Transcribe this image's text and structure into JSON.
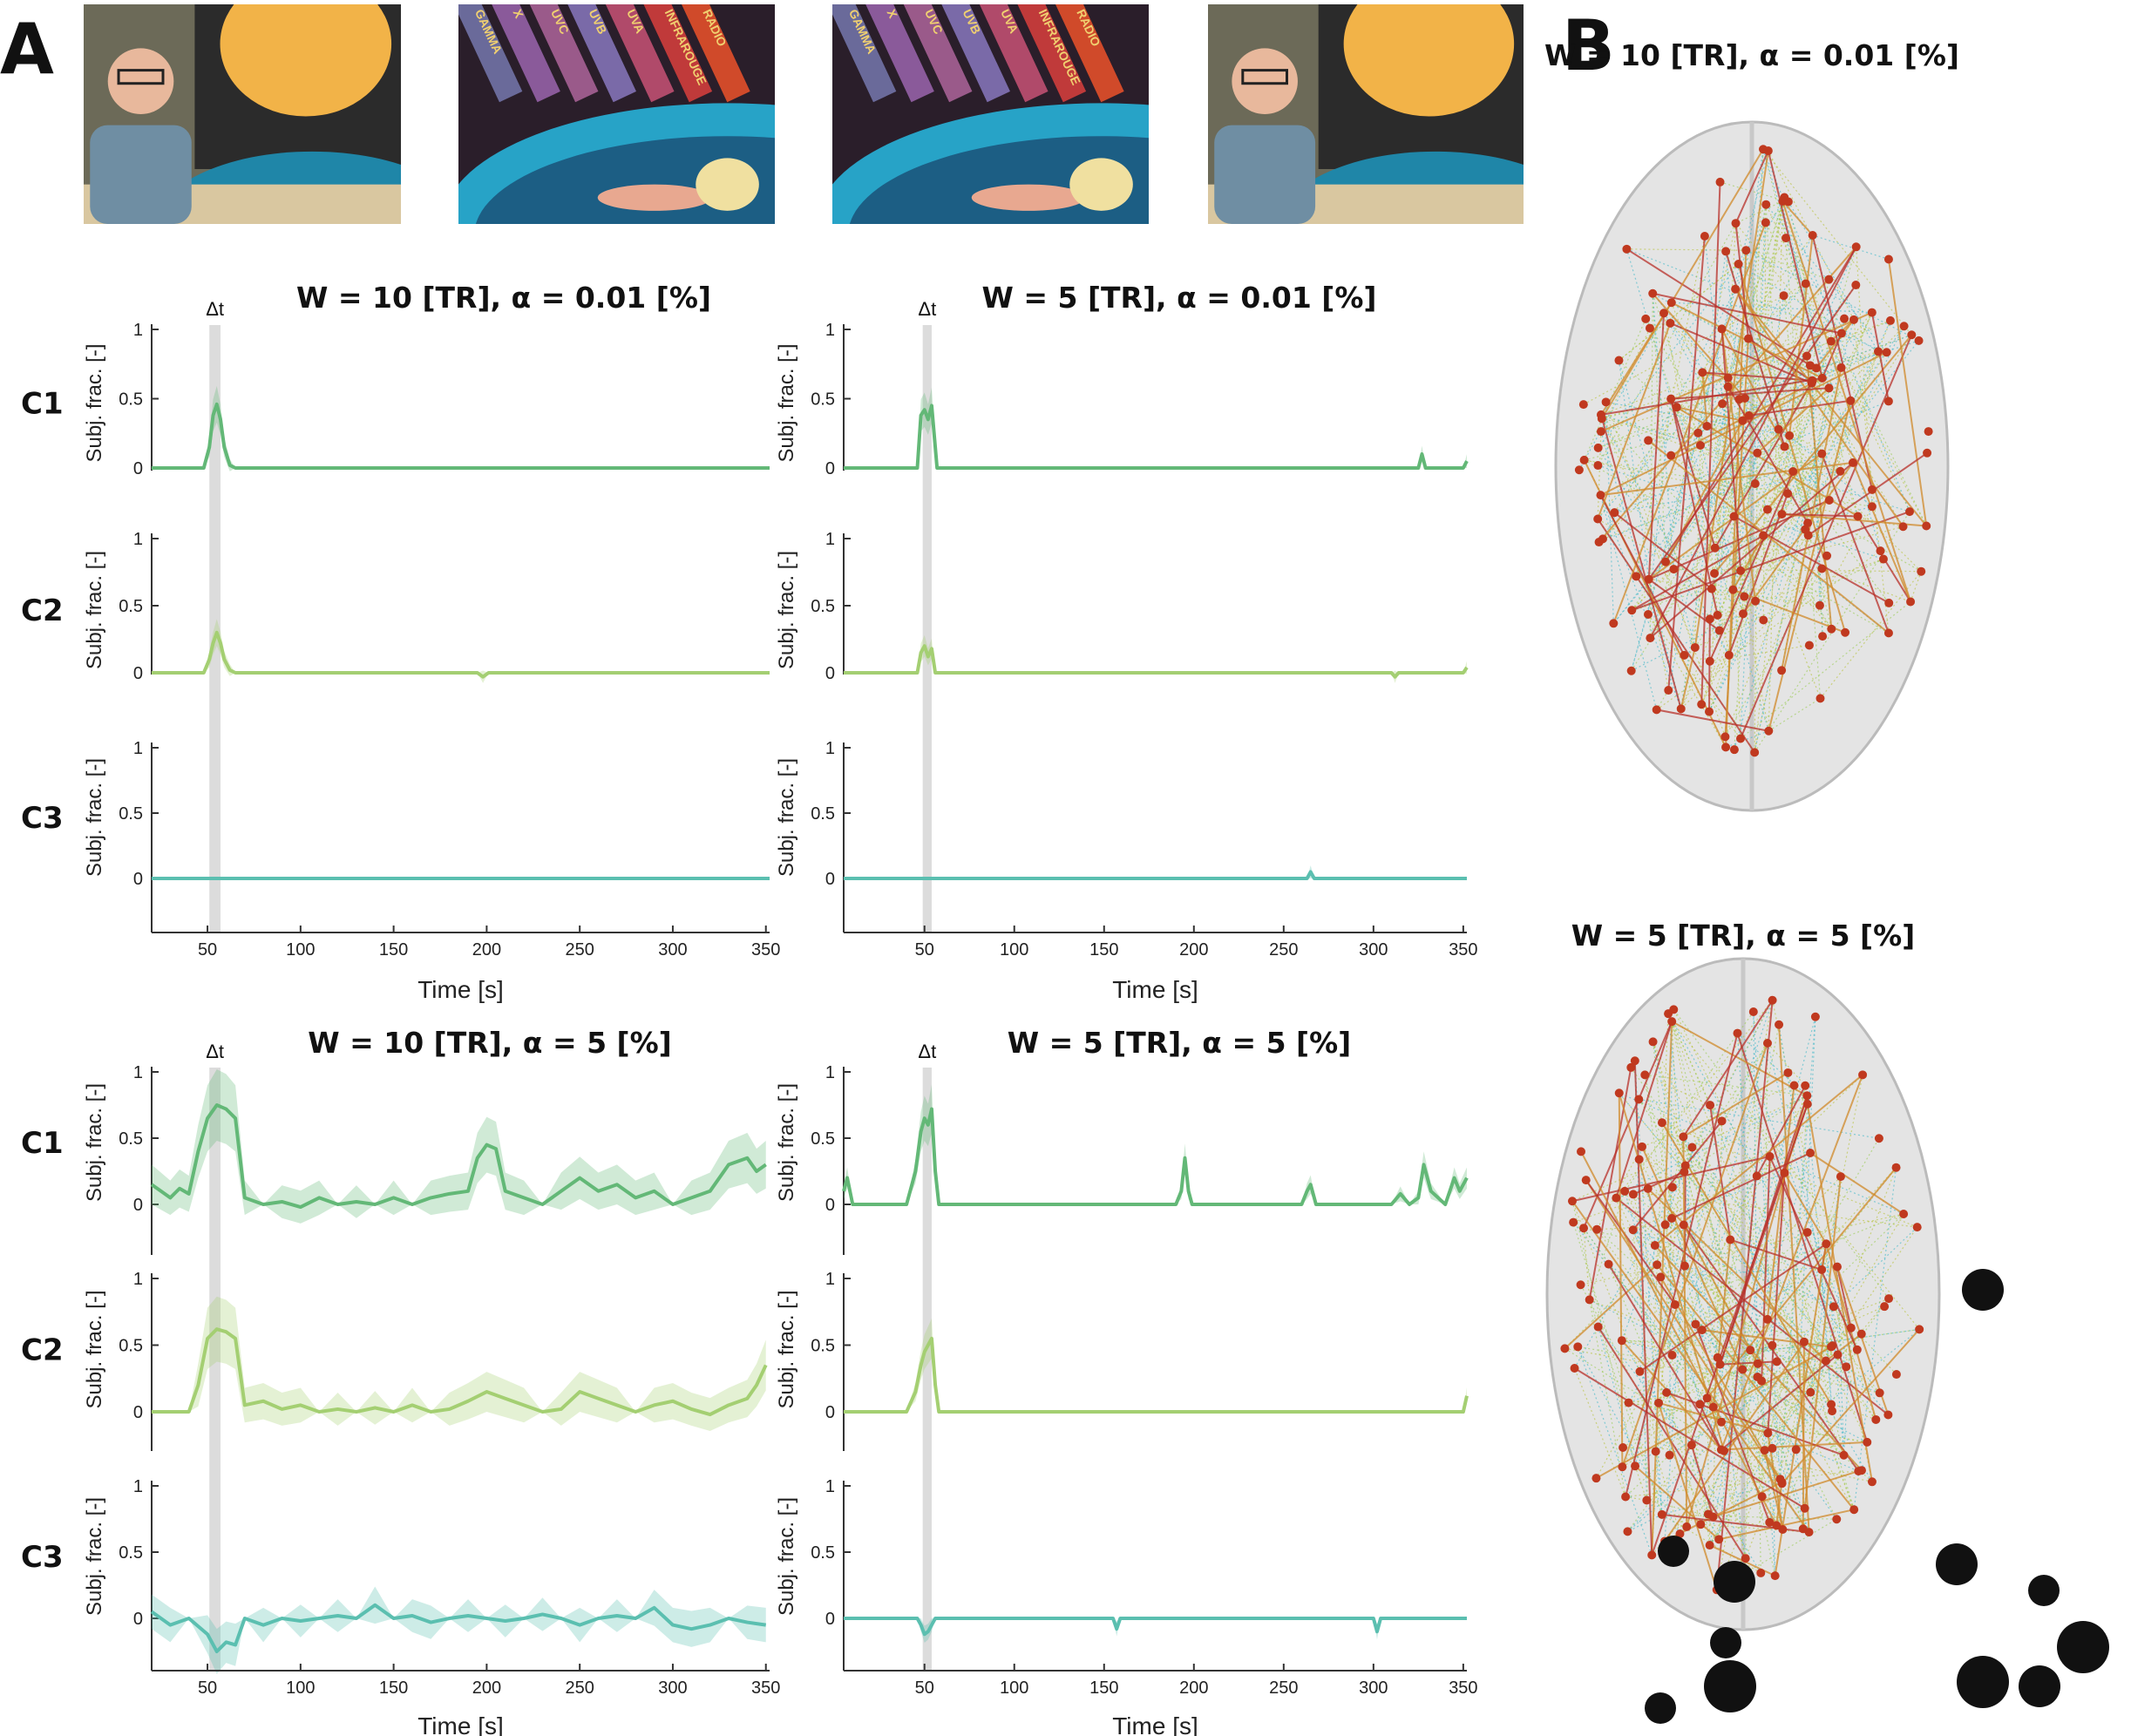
{
  "panel_labels": {
    "a": "A",
    "b": "B"
  },
  "thumbnails": [
    {
      "label_texts": [],
      "scene": "presenter"
    },
    {
      "label_texts": [
        "GAMMA",
        "X",
        "UVC",
        "UVB",
        "UVA",
        "INFRAROUGE",
        "RADIO"
      ],
      "scene": "spectrum"
    },
    {
      "label_texts": [
        "GAMMA",
        "X",
        "UVC",
        "UVB",
        "UVA",
        "INFRAROUGE",
        "RADIO"
      ],
      "scene": "spectrum"
    },
    {
      "label_texts": [],
      "scene": "presenter"
    }
  ],
  "delta_label": "Δt",
  "row_labels": [
    "C1",
    "C2",
    "C3"
  ],
  "y_axis_label": "Subj. frac. [-]",
  "x_axis_label": "Time [s]",
  "colors": {
    "C1": "#63b877",
    "C2": "#a4cf72",
    "C3": "#5bbfb0",
    "shade": "#dcdcdc"
  },
  "brain_titles": [
    "W = 10 [TR], α = 0.01 [%]",
    "W = 5 [TR], α = 5 [%]"
  ],
  "chart_data": [
    {
      "type": "line",
      "title": "W = 10 [TR], α = 0.01 [%]",
      "xlabel": "Time [s]",
      "ylabel": "Subj. frac. [-]",
      "xlim": [
        20,
        352
      ],
      "ylim": [
        -0.2,
        1
      ],
      "xticks": [
        50,
        100,
        150,
        200,
        250,
        300,
        350
      ],
      "yticks": [
        0,
        0.5,
        1
      ],
      "highlight_x": [
        51,
        57
      ],
      "series": [
        {
          "name": "C1",
          "x": [
            20,
            48,
            51,
            53,
            55,
            57,
            59,
            62,
            65,
            352
          ],
          "y": [
            0,
            0,
            0.15,
            0.38,
            0.46,
            0.35,
            0.15,
            0.02,
            0,
            0
          ]
        },
        {
          "name": "C2",
          "x": [
            20,
            48,
            51,
            53,
            55,
            57,
            59,
            62,
            65,
            195,
            198,
            201,
            352
          ],
          "y": [
            0,
            0,
            0.1,
            0.22,
            0.3,
            0.22,
            0.1,
            0.02,
            0,
            0,
            -0.03,
            0,
            0
          ]
        },
        {
          "name": "C3",
          "x": [
            20,
            352
          ],
          "y": [
            0,
            0
          ]
        }
      ]
    },
    {
      "type": "line",
      "title": "W = 5 [TR], α = 0.01 [%]",
      "xlabel": "Time [s]",
      "ylabel": "Subj. frac. [-]",
      "xlim": [
        5,
        352
      ],
      "ylim": [
        -0.2,
        1
      ],
      "xticks": [
        50,
        100,
        150,
        200,
        250,
        300,
        350
      ],
      "yticks": [
        0,
        0.5,
        1
      ],
      "highlight_x": [
        49,
        54
      ],
      "series": [
        {
          "name": "C1",
          "x": [
            5,
            46,
            48,
            50,
            52,
            54,
            56,
            57,
            325,
            327,
            329,
            350,
            352
          ],
          "y": [
            0,
            0,
            0.38,
            0.42,
            0.35,
            0.45,
            0.15,
            0,
            0,
            0.1,
            0,
            0,
            0.05
          ]
        },
        {
          "name": "C2",
          "x": [
            5,
            46,
            48,
            50,
            52,
            54,
            56,
            310,
            312,
            314,
            350,
            352
          ],
          "y": [
            0,
            0,
            0.15,
            0.2,
            0.12,
            0.18,
            0,
            0,
            -0.03,
            0,
            0,
            0.04
          ]
        },
        {
          "name": "C3",
          "x": [
            5,
            263,
            265,
            267,
            352
          ],
          "y": [
            0,
            0,
            0.05,
            0,
            0
          ]
        }
      ]
    },
    {
      "type": "line",
      "title": "W = 10 [TR], α = 5 [%]",
      "xlabel": "Time [s]",
      "ylabel": "Subj. frac. [-]",
      "xlim": [
        20,
        352
      ],
      "ylim": [
        -0.4,
        1
      ],
      "xticks": [
        50,
        100,
        150,
        200,
        250,
        300,
        350
      ],
      "yticks": [
        0,
        0.5,
        1
      ],
      "highlight_x": [
        51,
        57
      ],
      "series": [
        {
          "name": "C1",
          "x": [
            20,
            25,
            30,
            35,
            40,
            45,
            50,
            55,
            60,
            65,
            70,
            80,
            90,
            100,
            110,
            120,
            130,
            140,
            150,
            160,
            170,
            180,
            190,
            195,
            200,
            205,
            210,
            220,
            230,
            240,
            250,
            260,
            270,
            280,
            290,
            300,
            310,
            320,
            330,
            340,
            345,
            350
          ],
          "y": [
            0.15,
            0.1,
            0.05,
            0.12,
            0.08,
            0.4,
            0.65,
            0.75,
            0.72,
            0.65,
            0.05,
            0.0,
            0.02,
            -0.02,
            0.05,
            0.0,
            0.02,
            0.0,
            0.05,
            0.0,
            0.05,
            0.08,
            0.1,
            0.35,
            0.45,
            0.42,
            0.1,
            0.05,
            0.0,
            0.1,
            0.2,
            0.1,
            0.15,
            0.05,
            0.1,
            0.0,
            0.05,
            0.1,
            0.3,
            0.35,
            0.25,
            0.3
          ]
        },
        {
          "name": "C2",
          "x": [
            20,
            40,
            45,
            50,
            55,
            60,
            65,
            70,
            80,
            90,
            100,
            110,
            120,
            130,
            140,
            150,
            160,
            170,
            180,
            190,
            200,
            210,
            220,
            230,
            240,
            250,
            260,
            270,
            280,
            290,
            300,
            310,
            320,
            330,
            340,
            345,
            350
          ],
          "y": [
            0,
            0,
            0.2,
            0.55,
            0.62,
            0.6,
            0.55,
            0.05,
            0.08,
            0.02,
            0.05,
            0.0,
            0.02,
            0.0,
            0.03,
            0.0,
            0.05,
            0.0,
            0.02,
            0.08,
            0.15,
            0.1,
            0.05,
            0.0,
            0.02,
            0.15,
            0.1,
            0.05,
            0.0,
            0.05,
            0.08,
            0.02,
            -0.02,
            0.05,
            0.1,
            0.2,
            0.35
          ]
        },
        {
          "name": "C3",
          "x": [
            20,
            30,
            40,
            50,
            55,
            60,
            65,
            70,
            80,
            90,
            100,
            110,
            120,
            130,
            140,
            150,
            160,
            170,
            180,
            190,
            200,
            210,
            220,
            230,
            240,
            250,
            260,
            270,
            280,
            290,
            300,
            310,
            320,
            330,
            340,
            350
          ],
          "y": [
            0.05,
            -0.05,
            0.0,
            -0.12,
            -0.25,
            -0.18,
            -0.2,
            0.0,
            -0.05,
            0.0,
            -0.02,
            0.0,
            0.02,
            0.0,
            0.1,
            0.0,
            0.02,
            -0.03,
            0.0,
            0.02,
            0.0,
            -0.02,
            0.0,
            0.03,
            0.0,
            -0.05,
            0.0,
            0.02,
            0.0,
            0.08,
            -0.05,
            -0.08,
            -0.05,
            0.0,
            -0.03,
            -0.05
          ]
        }
      ]
    },
    {
      "type": "line",
      "title": "W = 5 [TR], α = 5 [%]",
      "xlabel": "Time [s]",
      "ylabel": "Subj. frac. [-]",
      "xlim": [
        5,
        352
      ],
      "ylim": [
        -0.4,
        1
      ],
      "xticks": [
        50,
        100,
        150,
        200,
        250,
        300,
        350
      ],
      "yticks": [
        0,
        0.5,
        1
      ],
      "highlight_x": [
        49,
        54
      ],
      "series": [
        {
          "name": "C1",
          "x": [
            5,
            7,
            10,
            40,
            45,
            48,
            50,
            52,
            54,
            56,
            58,
            190,
            193,
            195,
            197,
            199,
            260,
            263,
            265,
            268,
            310,
            315,
            320,
            325,
            328,
            332,
            340,
            345,
            348,
            350,
            352
          ],
          "y": [
            0.1,
            0.2,
            0,
            0,
            0.25,
            0.55,
            0.65,
            0.6,
            0.72,
            0.25,
            0,
            0,
            0.1,
            0.35,
            0.1,
            0,
            0,
            0.1,
            0.15,
            0,
            0,
            0.08,
            0.0,
            0.05,
            0.3,
            0.1,
            0.0,
            0.2,
            0.1,
            0.15,
            0.2
          ]
        },
        {
          "name": "C2",
          "x": [
            5,
            40,
            45,
            48,
            50,
            52,
            54,
            56,
            58,
            350,
            352
          ],
          "y": [
            0,
            0,
            0.15,
            0.35,
            0.45,
            0.5,
            0.55,
            0.2,
            0,
            0,
            0.12
          ]
        },
        {
          "name": "C3",
          "x": [
            5,
            46,
            48,
            50,
            52,
            54,
            56,
            155,
            157,
            159,
            300,
            302,
            304,
            352
          ],
          "y": [
            0,
            0,
            -0.05,
            -0.12,
            -0.1,
            -0.05,
            0,
            0,
            -0.08,
            0,
            0,
            -0.1,
            0,
            0
          ]
        }
      ]
    }
  ]
}
